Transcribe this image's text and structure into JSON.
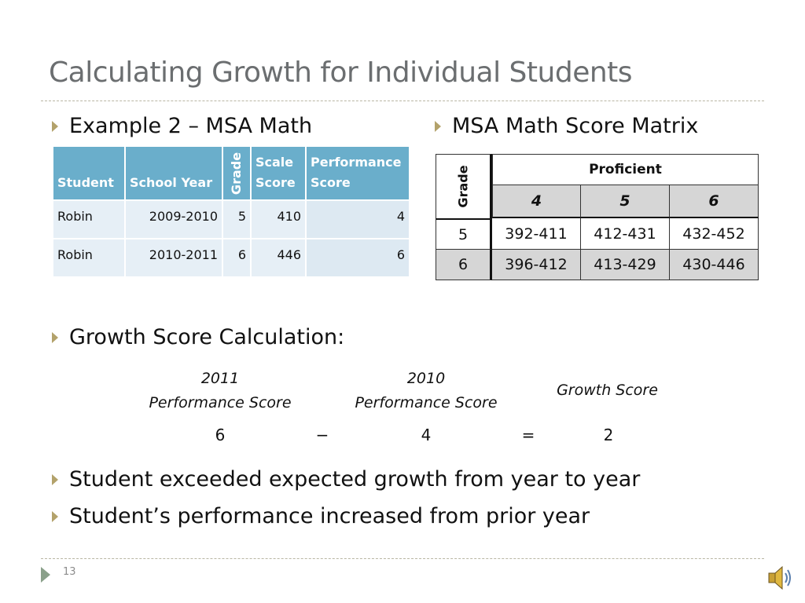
{
  "title": "Calculating Growth for Individual Students",
  "bullets": {
    "example": "Example 2 – MSA Math",
    "matrix_title": "MSA Math Score Matrix",
    "growth_calc": "Growth Score Calculation:",
    "b1": "Student exceeded expected growth from year to year",
    "b2": "Student’s performance increased from prior year"
  },
  "student_table": {
    "headers": {
      "student": "Student",
      "school_year": "School Year",
      "grade": "Grade",
      "scale_score_1": "Scale",
      "scale_score_2": "Score",
      "performance_score_1": "Performance",
      "performance_score_2": "Score"
    },
    "rows": [
      {
        "student": "Robin",
        "school_year": "2009-2010",
        "grade": "5",
        "scale_score": "410",
        "performance_score": "4"
      },
      {
        "student": "Robin",
        "school_year": "2010-2011",
        "grade": "6",
        "scale_score": "446",
        "performance_score": "6"
      }
    ]
  },
  "matrix": {
    "grade_label": "Grade",
    "proficient_label": "Proficient",
    "columns": [
      "4",
      "5",
      "6"
    ],
    "rows": [
      {
        "grade": "5",
        "ranges": [
          "392-411",
          "412-431",
          "432-452"
        ]
      },
      {
        "grade": "6",
        "ranges": [
          "396-412",
          "413-429",
          "430-446"
        ]
      }
    ]
  },
  "calculation": {
    "label_2011_line1": "2011",
    "label_2011_line2": "Performance Score",
    "label_2010_line1": "2010",
    "label_2010_line2": "Performance Score",
    "label_growth": "Growth Score",
    "value_2011": "6",
    "minus": "−",
    "value_2010": "4",
    "equals": "=",
    "growth_value": "2"
  },
  "footer": {
    "slide_number": "13",
    "nav_icon": "play-triangle-icon",
    "audio_icon": "speaker-icon"
  },
  "colors": {
    "title": "#6b6e70",
    "bullet_marker": "#b3a26b",
    "table_header": "#6aaecb",
    "table_row": "#e6eff6",
    "matrix_gray": "#d6d6d6"
  }
}
